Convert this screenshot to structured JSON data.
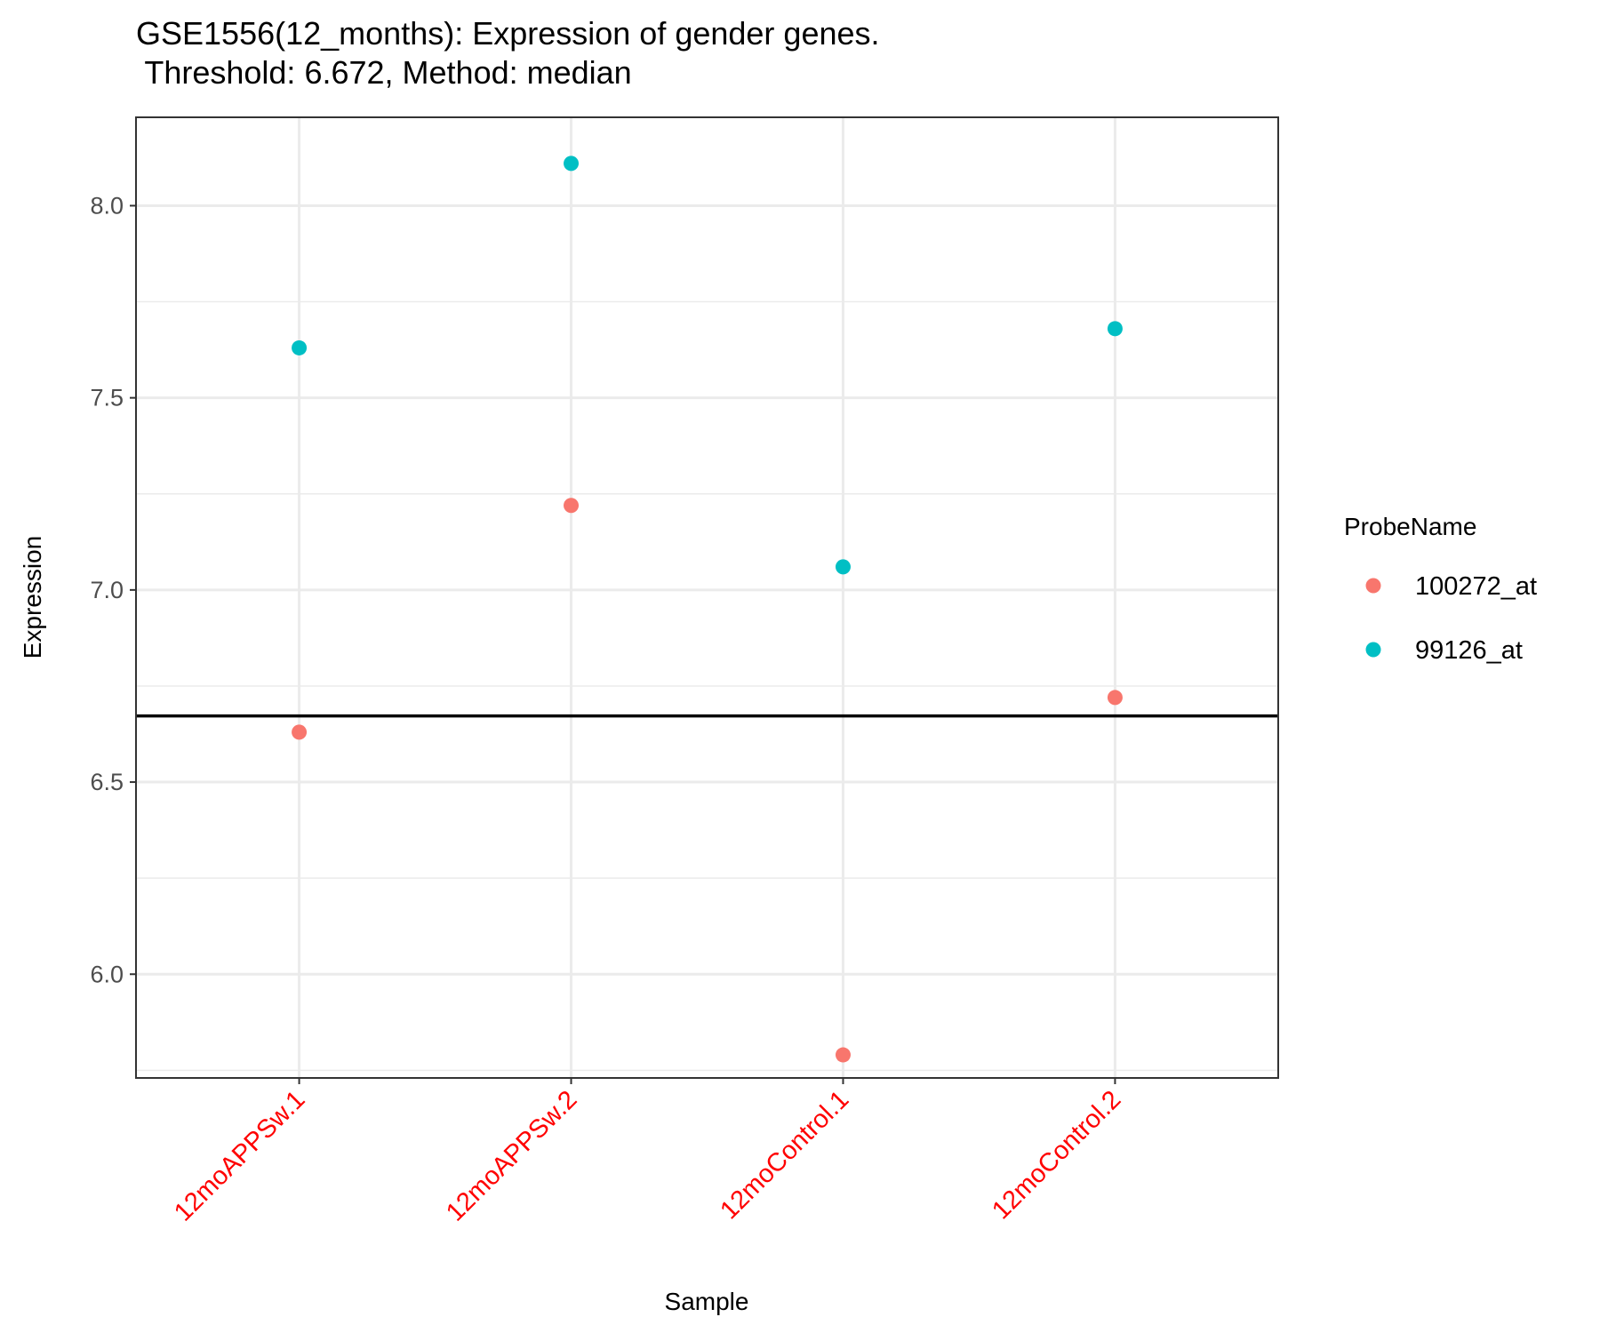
{
  "chart_data": {
    "type": "scatter",
    "title": "GSE1556(12_months): Expression of gender genes.",
    "subtitle": " Threshold: 6.672, Method: median",
    "xlabel": "Sample",
    "ylabel": "Expression",
    "categories": [
      "12moAPPSw.1",
      "12moAPPSw.2",
      "12moControl.1",
      "12moControl.2"
    ],
    "category_label_color": "#ff0000",
    "ylim": [
      5.73,
      8.23
    ],
    "yticks": [
      6.0,
      6.5,
      7.0,
      7.5,
      8.0
    ],
    "ytick_labels": [
      "6.0",
      "6.5",
      "7.0",
      "7.5",
      "8.0"
    ],
    "threshold": 6.672,
    "threshold_color": "#000000",
    "grid": true,
    "legend": {
      "title": "ProbeName",
      "placement": "right"
    },
    "series": [
      {
        "name": "100272_at",
        "color": "#F8766D",
        "values": [
          6.63,
          7.22,
          5.79,
          6.72
        ]
      },
      {
        "name": "99126_at",
        "color": "#00BFC4",
        "values": [
          7.63,
          8.11,
          7.06,
          7.68
        ]
      }
    ]
  }
}
